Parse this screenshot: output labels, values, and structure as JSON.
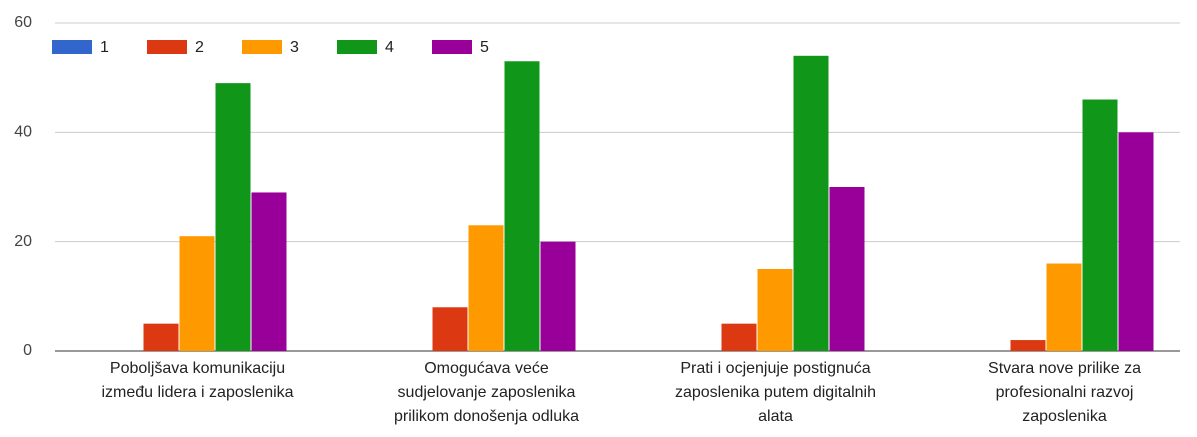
{
  "chart_data": {
    "type": "bar",
    "categories": [
      "Poboljšava komunikaciju\nizmeđu lidera i zaposlenika",
      "Omogućava veće\nsudjelovanje zaposlenika\nprilikom donošenja odluka",
      "Prati i ocjenjuje postignuća\nzaposlenika putem digitalnih\nalata",
      "Stvara nove prilike za\nprofesionalni razvoj\nzaposlenika"
    ],
    "series": [
      {
        "name": "1",
        "color": "#3366cc",
        "values": [
          0,
          0,
          0,
          0
        ]
      },
      {
        "name": "2",
        "color": "#dc3912",
        "values": [
          5,
          8,
          5,
          2
        ]
      },
      {
        "name": "3",
        "color": "#ff9900",
        "values": [
          21,
          23,
          15,
          16
        ]
      },
      {
        "name": "4",
        "color": "#109618",
        "values": [
          49,
          53,
          54,
          46
        ]
      },
      {
        "name": "5",
        "color": "#990099",
        "values": [
          29,
          20,
          30,
          40
        ]
      }
    ],
    "ylim": [
      0,
      60
    ],
    "yticks": [
      0,
      20,
      40,
      60
    ],
    "grid": true,
    "legend": "top"
  }
}
